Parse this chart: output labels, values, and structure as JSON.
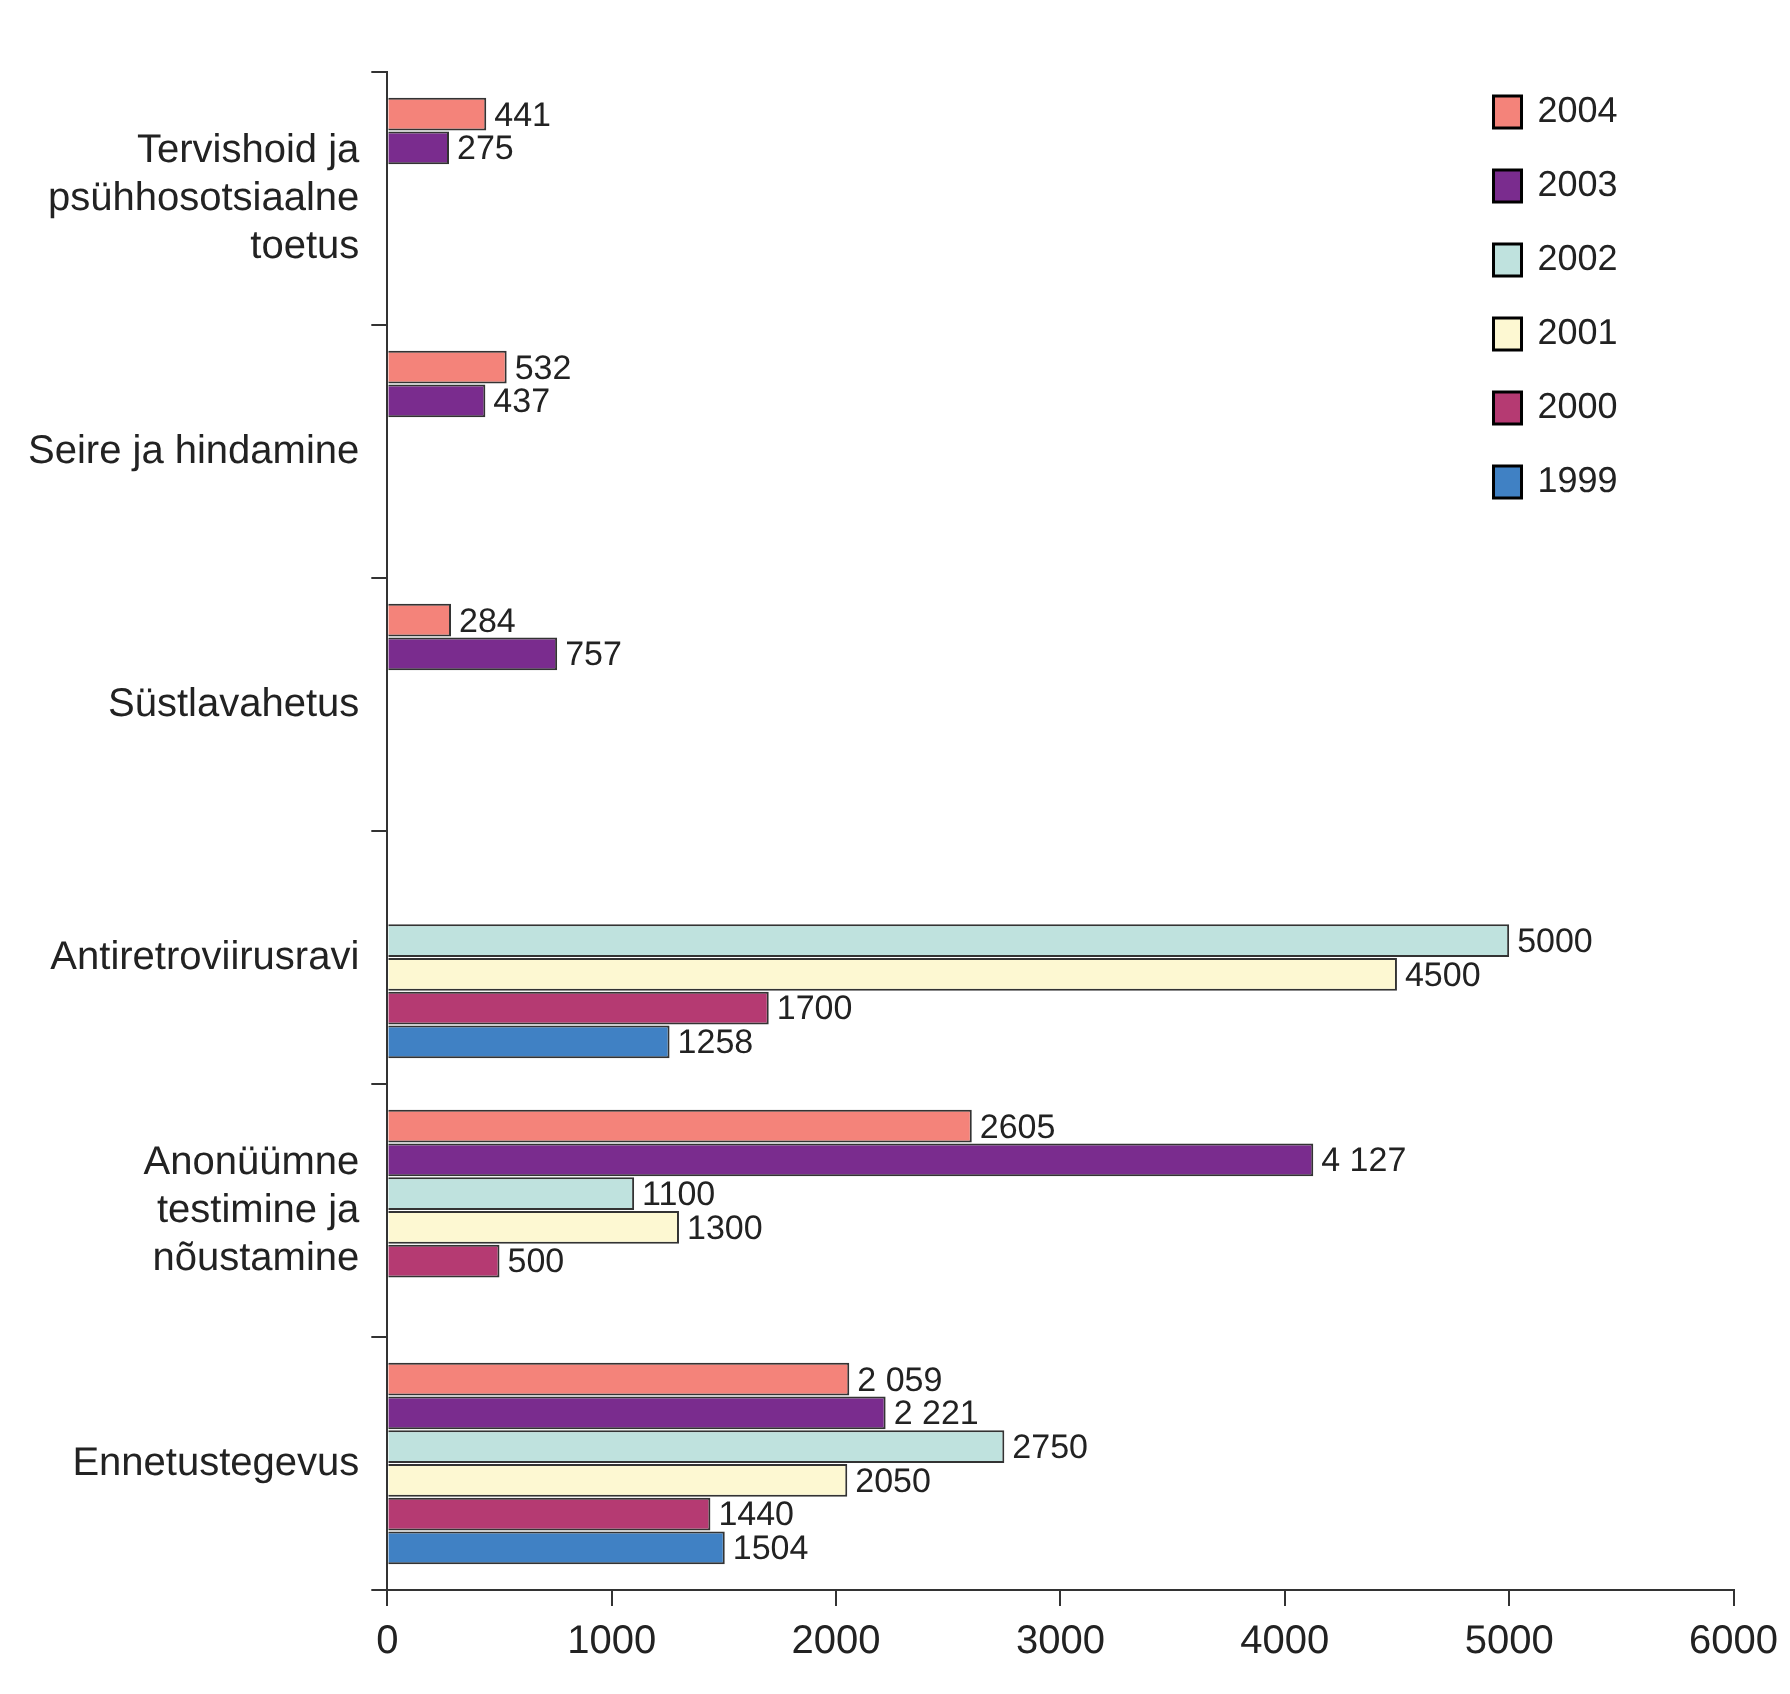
{
  "chart_data": {
    "type": "bar",
    "orientation": "horizontal",
    "categories": [
      "Tervishoid ja psühhosotsiaalne toetus",
      "Seire ja hindamine",
      "Süstlavahetus",
      "Antiretroviirusravi",
      "Anonüümne testimine ja nõustamine",
      "Ennetustegevus"
    ],
    "series": [
      {
        "name": "2004",
        "color": "#f4837a",
        "values": [
          441,
          532,
          284,
          null,
          2605,
          2059
        ],
        "value_labels": [
          "441",
          "532",
          "284",
          null,
          "2605",
          "2 059"
        ]
      },
      {
        "name": "2003",
        "color": "#7a2c8e",
        "values": [
          275,
          437,
          757,
          null,
          4127,
          2221
        ],
        "value_labels": [
          "275",
          "437",
          "757",
          null,
          "4 127",
          "2 221"
        ]
      },
      {
        "name": "2002",
        "color": "#bfe2de",
        "values": [
          null,
          null,
          null,
          5000,
          1100,
          2750
        ],
        "value_labels": [
          null,
          null,
          null,
          "5000",
          "1100",
          "2750"
        ]
      },
      {
        "name": "2001",
        "color": "#fdf8d2",
        "values": [
          null,
          null,
          null,
          4500,
          1300,
          2050
        ],
        "value_labels": [
          null,
          null,
          null,
          "4500",
          "1300",
          "2050"
        ]
      },
      {
        "name": "2000",
        "color": "#b53a72",
        "values": [
          null,
          null,
          null,
          1700,
          500,
          1440
        ],
        "value_labels": [
          null,
          null,
          null,
          "1700",
          "500",
          "1440"
        ]
      },
      {
        "name": "1999",
        "color": "#4081c4",
        "values": [
          null,
          null,
          null,
          1258,
          null,
          1504
        ],
        "value_labels": [
          null,
          null,
          null,
          "1258",
          null,
          "1504"
        ]
      }
    ],
    "xlim": [
      0,
      6000
    ],
    "xticks": [
      0,
      1000,
      2000,
      3000,
      4000,
      5000,
      6000
    ],
    "grid": false,
    "legend": "top right"
  }
}
